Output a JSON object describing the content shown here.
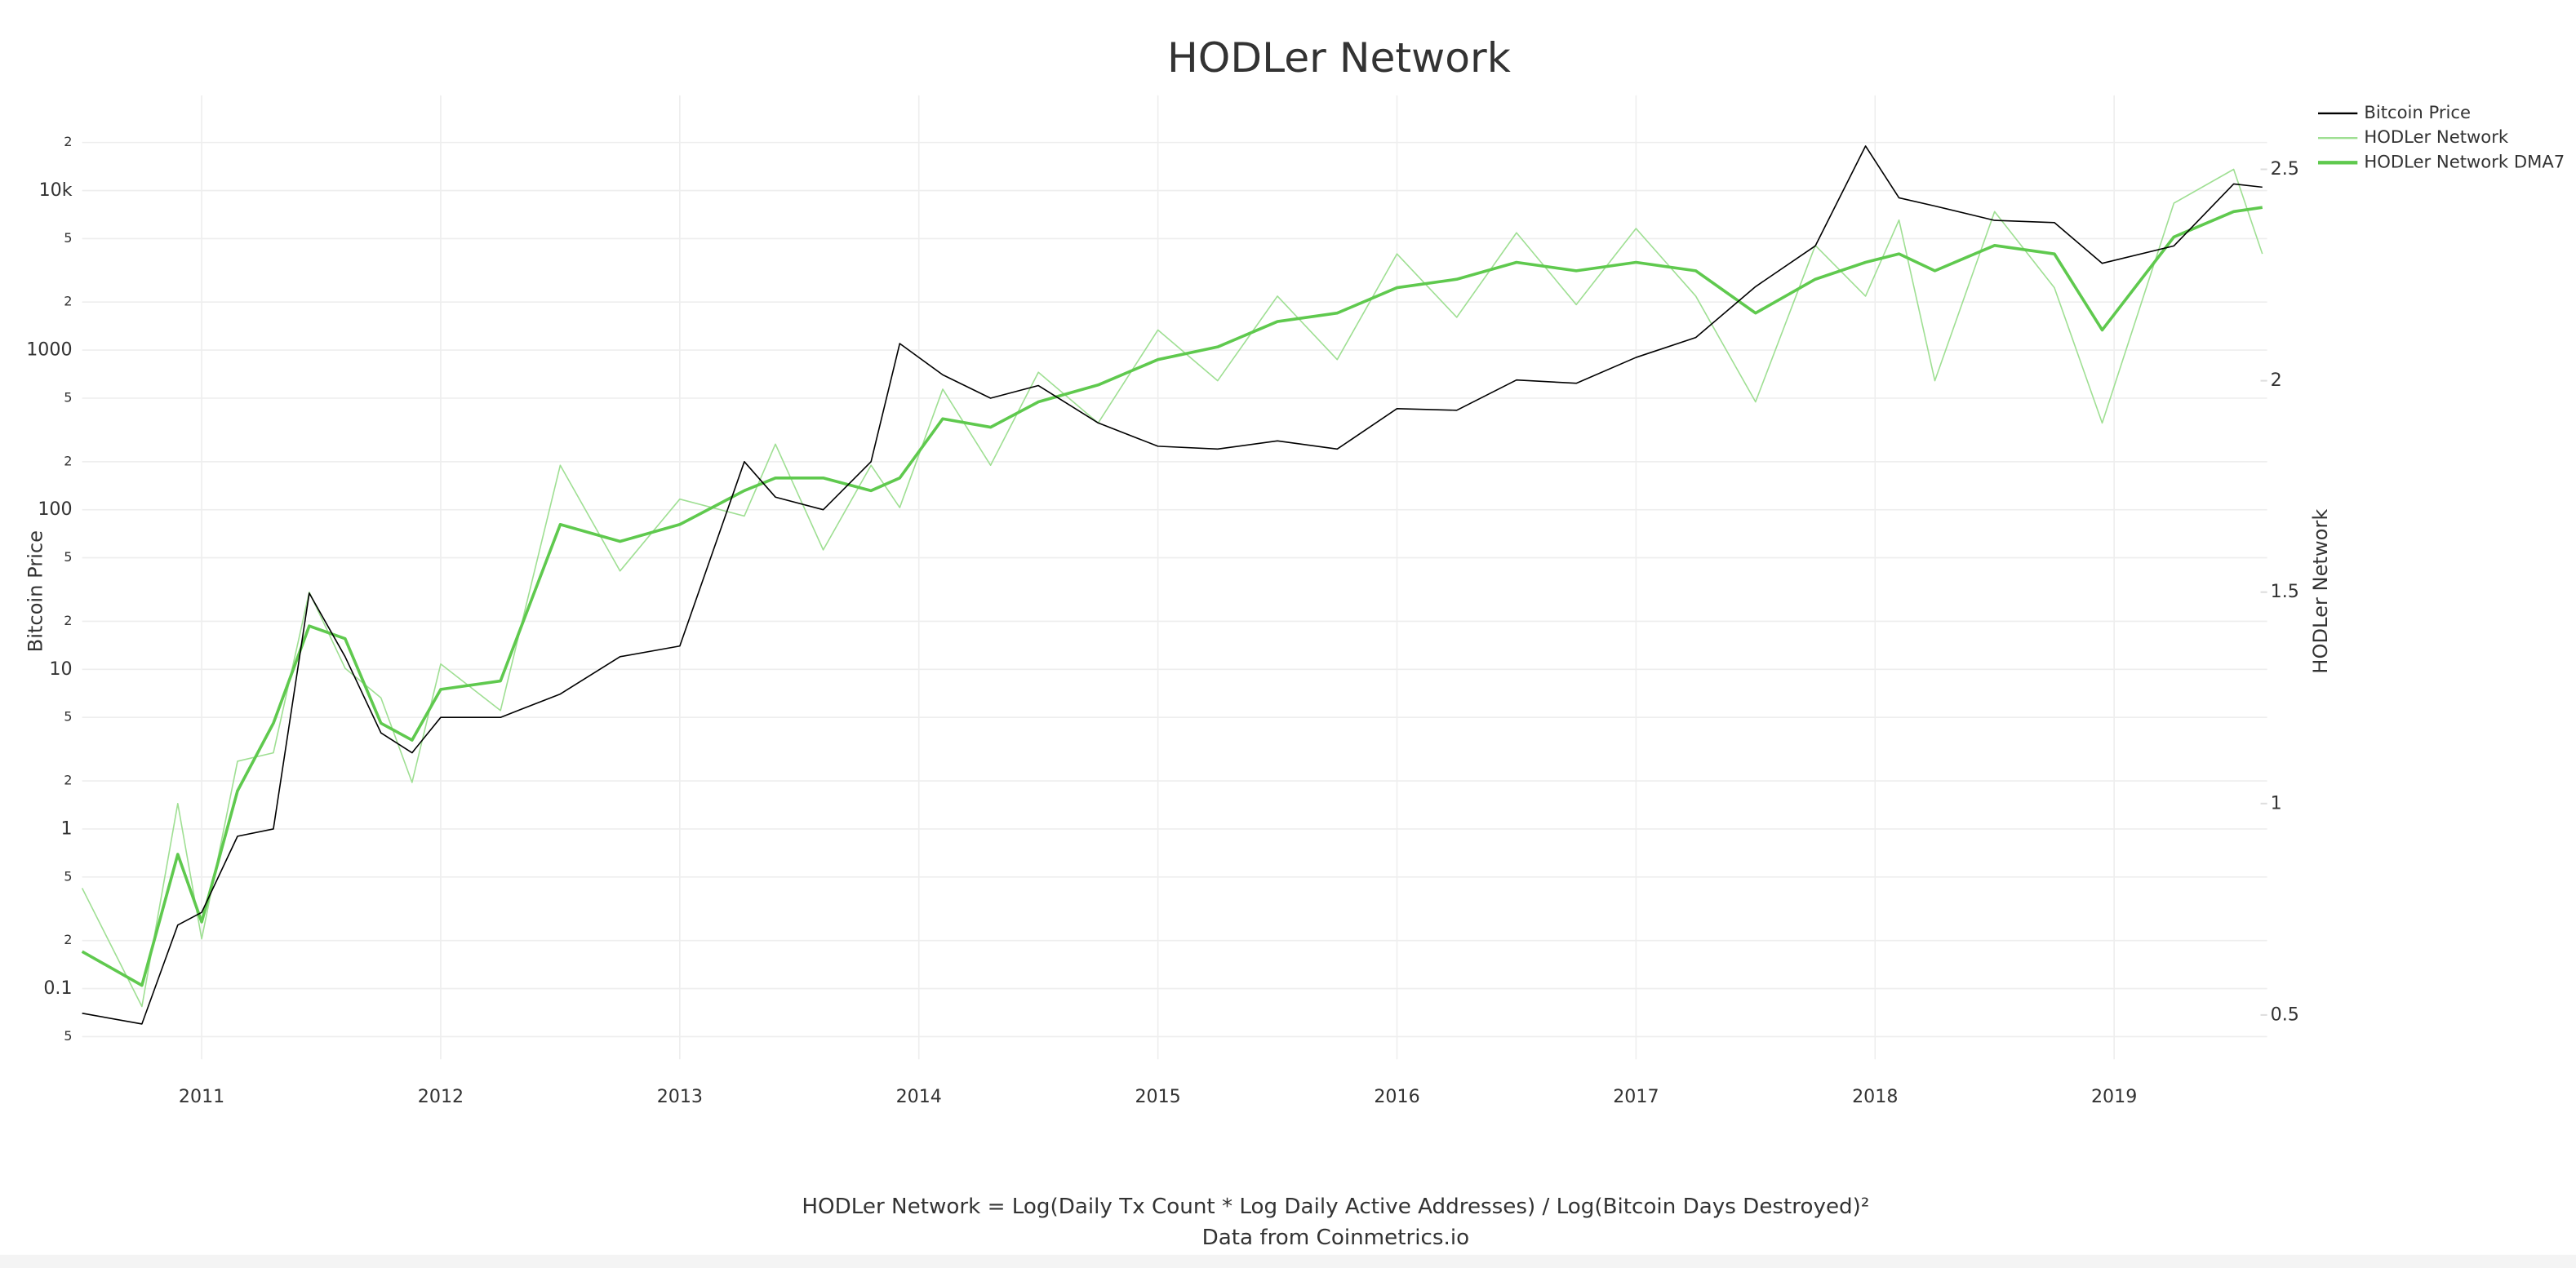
{
  "chart_data": {
    "type": "line",
    "title": "HODLer Network",
    "annotations": [
      "HODLer Network = Log(Daily Tx Count * Log Daily Active Addresses) / Log(Bitcoin Days Destroyed)²",
      "Data from Coinmetrics.io"
    ],
    "y_label": "Bitcoin Price",
    "y2_label": "HODLer Network",
    "x": [
      2010.5,
      2010.75,
      2010.9,
      2011.0,
      2011.15,
      2011.3,
      2011.45,
      2011.6,
      2011.75,
      2011.88,
      2012.0,
      2012.25,
      2012.5,
      2012.75,
      2013.0,
      2013.27,
      2013.4,
      2013.6,
      2013.8,
      2013.92,
      2014.1,
      2014.3,
      2014.5,
      2014.75,
      2015.0,
      2015.25,
      2015.5,
      2015.75,
      2016.0,
      2016.25,
      2016.5,
      2016.75,
      2017.0,
      2017.25,
      2017.5,
      2017.75,
      2017.96,
      2018.1,
      2018.25,
      2018.5,
      2018.75,
      2018.95,
      2019.25,
      2019.5,
      2019.62
    ],
    "series": [
      {
        "name": "Bitcoin Price",
        "color": "#000000",
        "width": 0.8,
        "axis": "y",
        "values": [
          0.07,
          0.06,
          0.25,
          0.3,
          0.9,
          1,
          30,
          12,
          4,
          3,
          5,
          5,
          7,
          12,
          14,
          200,
          120,
          100,
          200,
          1100,
          700,
          500,
          600,
          350,
          250,
          240,
          270,
          240,
          430,
          420,
          650,
          620,
          900,
          1200,
          2500,
          4500,
          19000,
          9000,
          8000,
          6500,
          6300,
          3500,
          4500,
          11000,
          10500
        ]
      },
      {
        "name": "HODLer Network",
        "color": "#9fdf93",
        "width": 0.8,
        "axis": "y2",
        "values": [
          0.8,
          0.52,
          1.0,
          0.68,
          1.1,
          1.12,
          1.5,
          1.32,
          1.25,
          1.05,
          1.33,
          1.22,
          1.8,
          1.55,
          1.72,
          1.68,
          1.85,
          1.6,
          1.8,
          1.7,
          1.98,
          1.8,
          2.02,
          1.9,
          2.12,
          2.0,
          2.2,
          2.05,
          2.3,
          2.15,
          2.35,
          2.18,
          2.36,
          2.2,
          1.95,
          2.32,
          2.2,
          2.38,
          2.0,
          2.4,
          2.22,
          1.9,
          2.42,
          2.5,
          2.3
        ]
      },
      {
        "name": "HODLer Network DMA7",
        "color": "#5fc94e",
        "width": 1.8,
        "axis": "y2",
        "values": [
          0.65,
          0.57,
          0.88,
          0.72,
          1.03,
          1.19,
          1.42,
          1.39,
          1.19,
          1.15,
          1.27,
          1.29,
          1.66,
          1.62,
          1.66,
          1.74,
          1.77,
          1.77,
          1.74,
          1.77,
          1.91,
          1.89,
          1.95,
          1.99,
          2.05,
          2.08,
          2.14,
          2.16,
          2.22,
          2.24,
          2.28,
          2.26,
          2.28,
          2.26,
          2.16,
          2.24,
          2.28,
          2.3,
          2.26,
          2.32,
          2.3,
          2.12,
          2.34,
          2.4,
          2.41
        ]
      }
    ],
    "xlim": [
      2010.5,
      2019.64
    ],
    "xticks": [
      2011,
      2012,
      2013,
      2014,
      2015,
      2016,
      2017,
      2018,
      2019
    ],
    "ylog": true,
    "ylim": [
      0.036,
      39500
    ],
    "yticks": [
      {
        "value": 0.05,
        "label": "5"
      },
      0.1,
      {
        "value": 0.2,
        "label": "2"
      },
      {
        "value": 0.5,
        "label": "5"
      },
      1,
      {
        "value": 2,
        "label": "2"
      },
      {
        "value": 5,
        "label": "5"
      },
      10,
      {
        "value": 20,
        "label": "2"
      },
      {
        "value": 50,
        "label": "5"
      },
      100,
      {
        "value": 200,
        "label": "2"
      },
      {
        "value": 500,
        "label": "5"
      },
      1000,
      {
        "value": 2000,
        "label": "2"
      },
      {
        "value": 5000,
        "label": "5"
      },
      {
        "value": 10000,
        "label": "10k"
      },
      {
        "value": 20000,
        "label": "2"
      }
    ],
    "y2lim": [
      0.395,
      2.675
    ],
    "y2ticks": [
      0.5,
      1,
      1.5,
      2,
      2.5
    ],
    "grid": true,
    "legend": "top-right"
  }
}
